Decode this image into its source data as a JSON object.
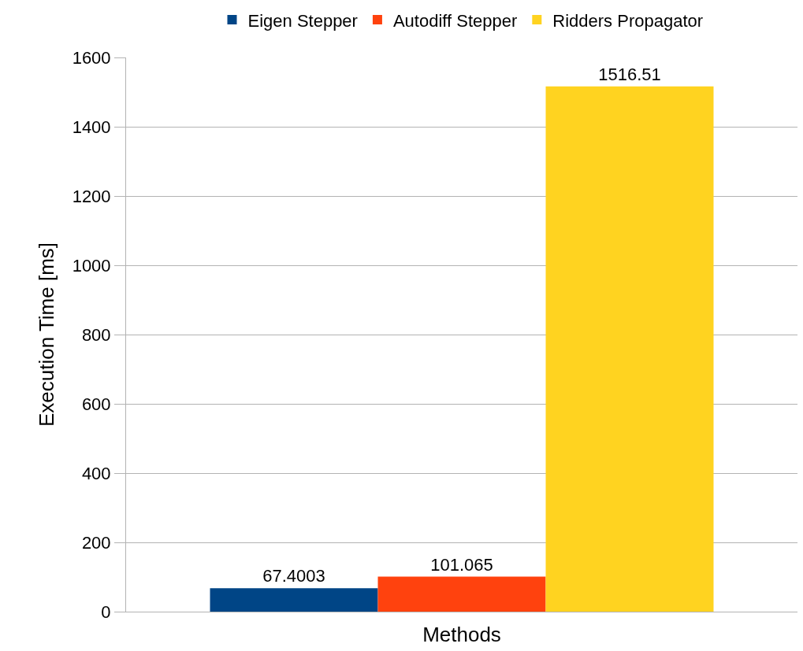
{
  "chart_data": {
    "type": "bar",
    "xlabel": "Methods",
    "ylabel": "Execution Time [ms]",
    "categories": [
      null
    ],
    "series": [
      {
        "name": "Eigen Stepper",
        "color": "#004586",
        "values": [
          67.4003
        ]
      },
      {
        "name": "Autodiff Stepper",
        "color": "#ff420e",
        "values": [
          101.065
        ]
      },
      {
        "name": "Ridders Propagator",
        "color": "#ffd320",
        "values": [
          1516.51
        ]
      }
    ],
    "ylim": [
      0,
      1600
    ],
    "yticks": [
      0,
      200,
      400,
      600,
      800,
      1000,
      1200,
      1400,
      1600
    ],
    "grid": "y",
    "legend": "top",
    "data_labels": true
  }
}
